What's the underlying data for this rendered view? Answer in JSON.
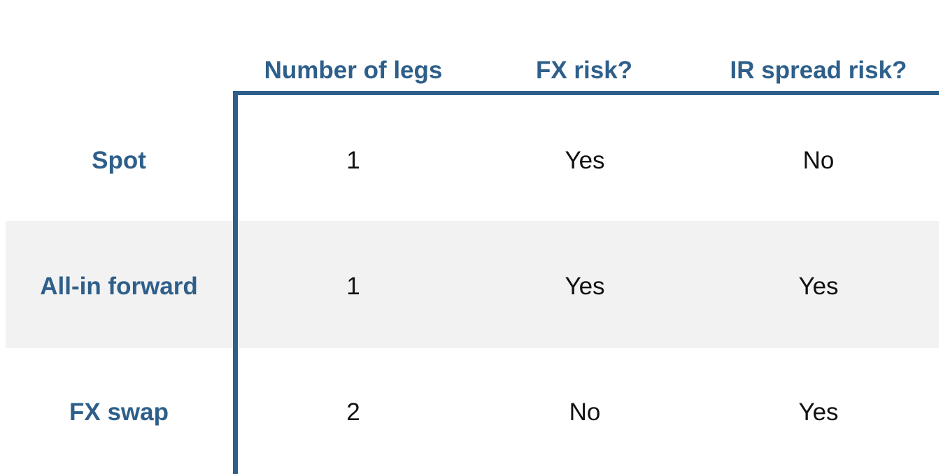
{
  "table": {
    "columns": [
      "Number of legs",
      "FX risk?",
      "IR spread risk?"
    ],
    "rows": [
      {
        "label": "Spot",
        "values": [
          "1",
          "Yes",
          "No"
        ]
      },
      {
        "label": "All-in forward",
        "values": [
          "1",
          "Yes",
          "Yes"
        ]
      },
      {
        "label": "FX swap",
        "values": [
          "2",
          "No",
          "Yes"
        ]
      }
    ]
  },
  "colors": {
    "accent": "#2e5f8a",
    "band": "#f2f2f2",
    "text": "#111111"
  }
}
